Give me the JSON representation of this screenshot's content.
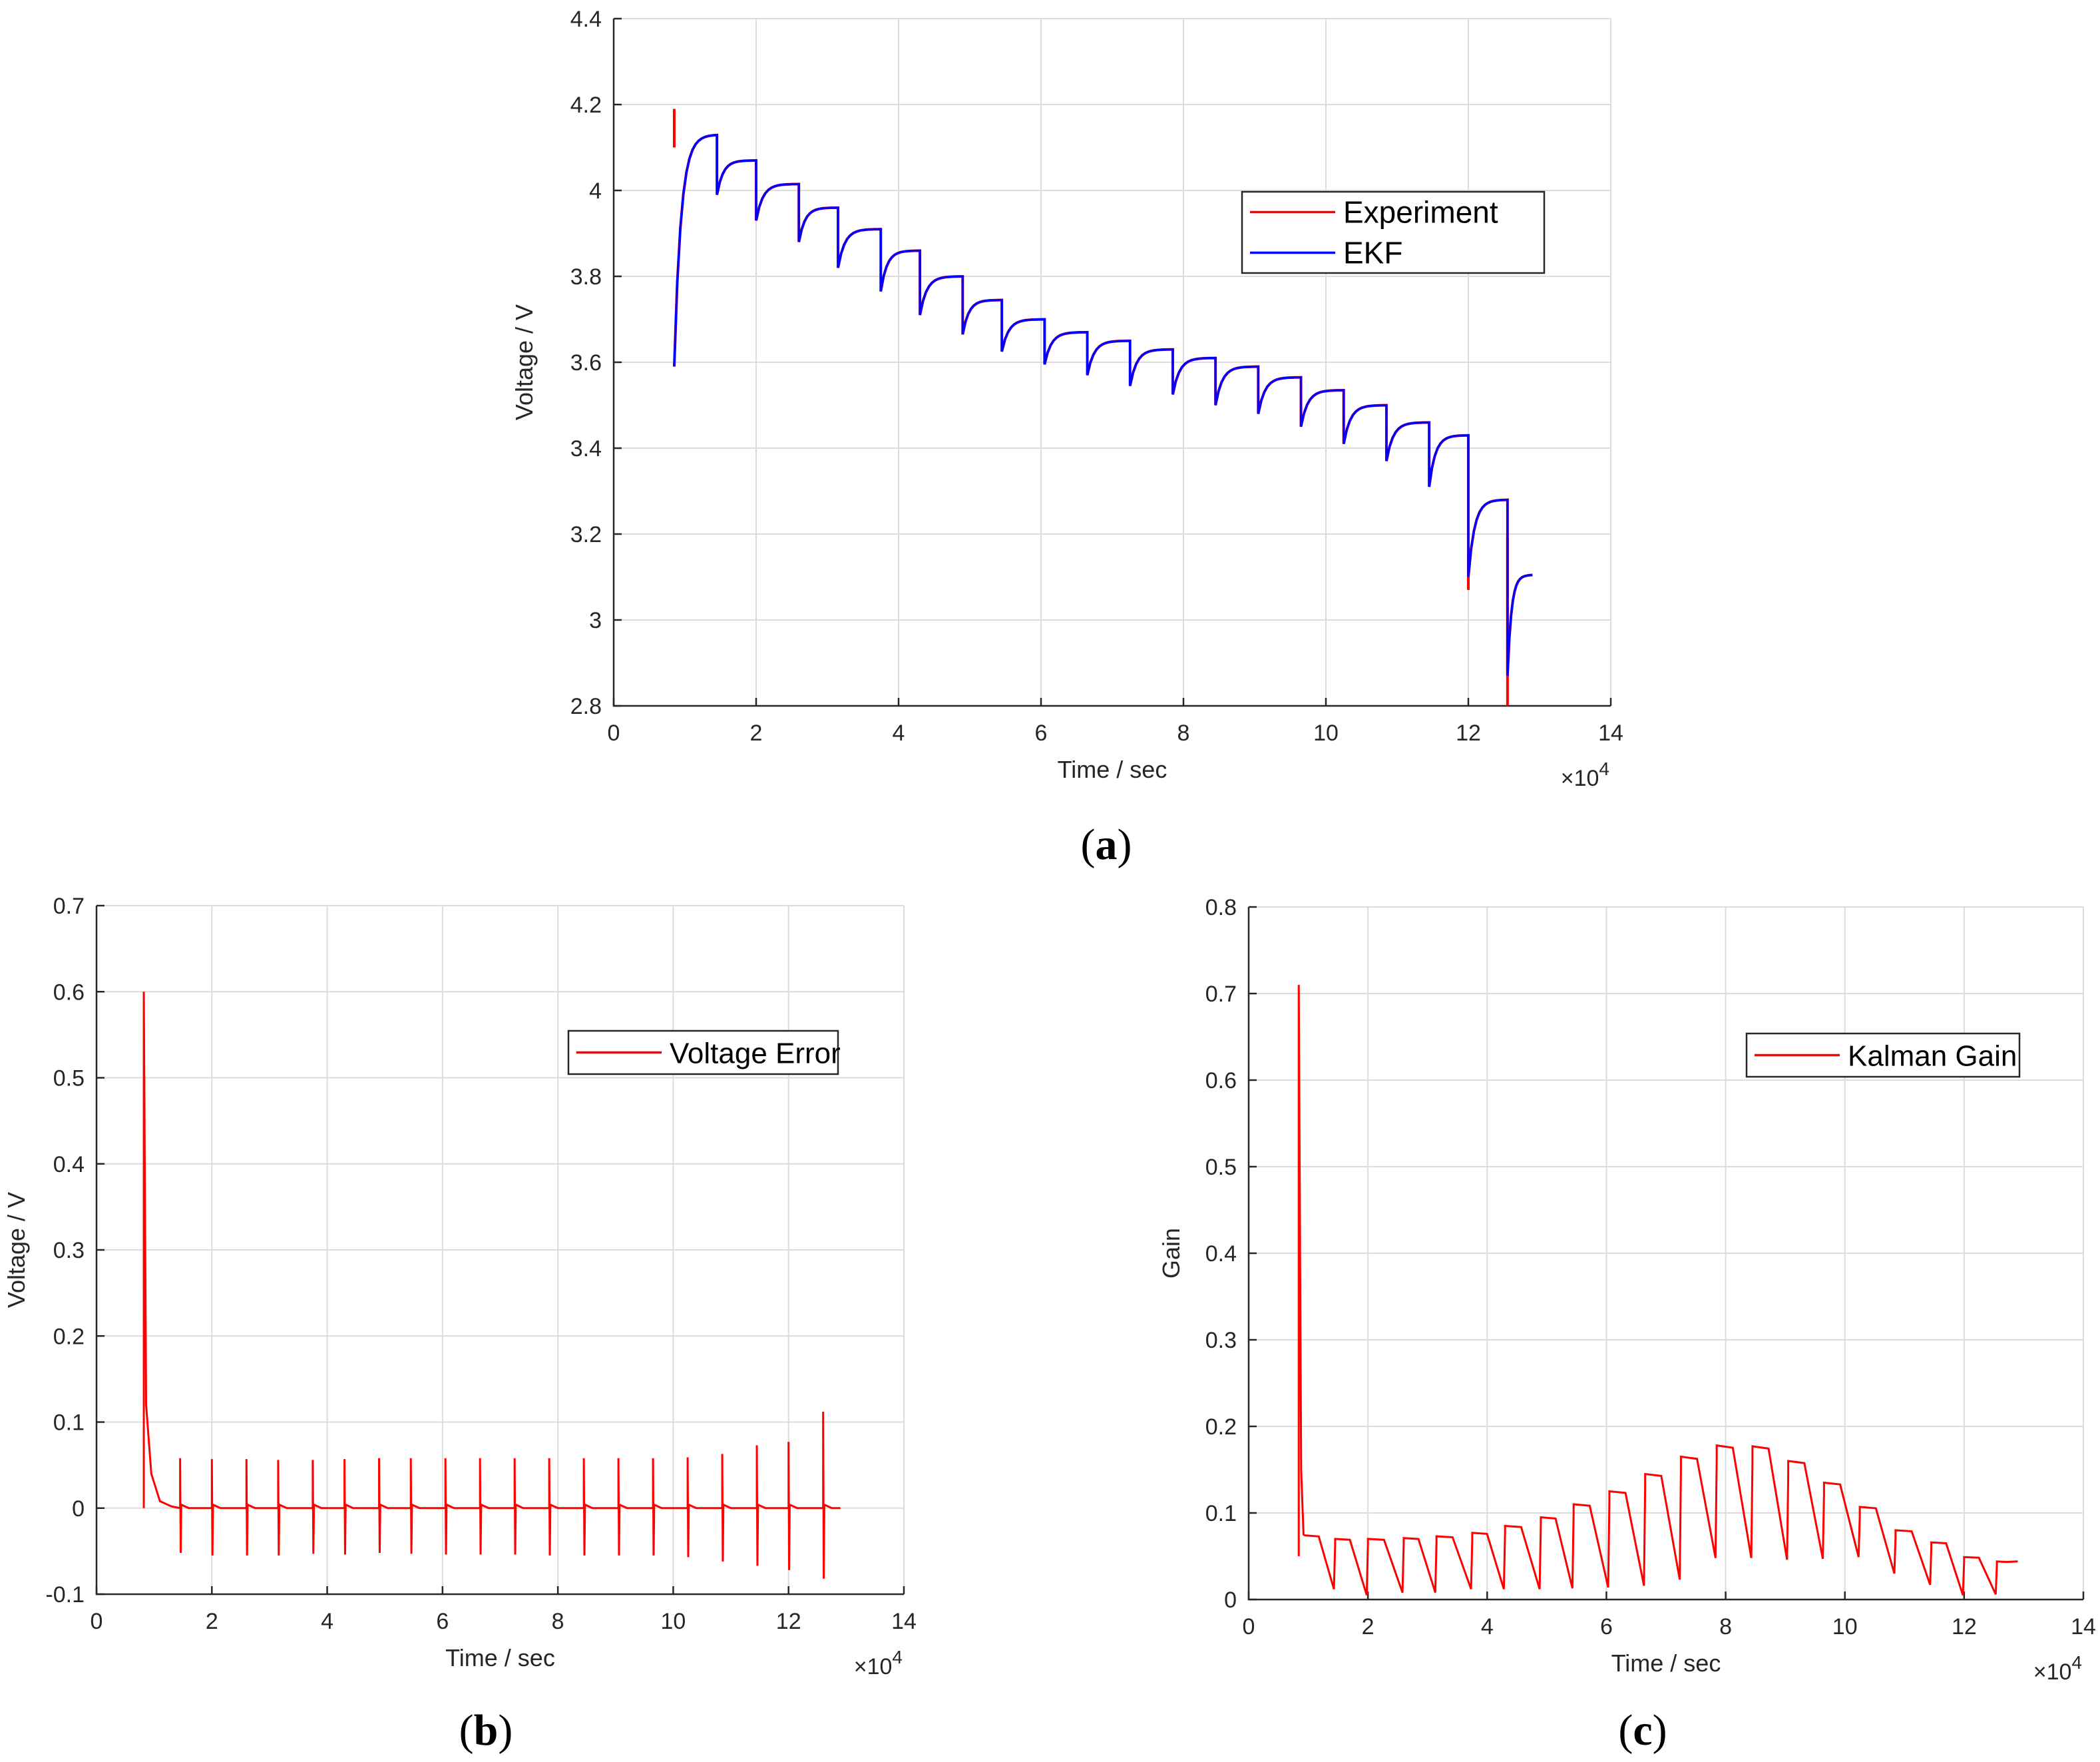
{
  "colors": {
    "experiment": "#ff0000",
    "ekf": "#0000ff",
    "error": "#ff0000",
    "gain": "#ff0000"
  },
  "chart_data": [
    {
      "id": "a",
      "type": "line",
      "caption_letter": "a",
      "xlabel": "Time / sec",
      "ylabel": "Voltage / V",
      "x_multiplier": "×10",
      "x_multiplier_exp": "4",
      "xlim": [
        0,
        14
      ],
      "ylim": [
        2.8,
        4.4
      ],
      "xticks": [
        "0",
        "2",
        "4",
        "6",
        "8",
        "10",
        "12",
        "14"
      ],
      "yticks": [
        "2.8",
        "3",
        "3.2",
        "3.4",
        "3.6",
        "3.8",
        "4",
        "4.2",
        "4.4"
      ],
      "legend": [
        "Experiment",
        "EKF"
      ],
      "pulse_times": [
        0.85,
        1.45,
        2.0,
        2.6,
        3.15,
        3.75,
        4.3,
        4.9,
        5.45,
        6.05,
        6.65,
        7.25,
        7.85,
        8.45,
        9.05,
        9.65,
        10.25,
        10.85,
        11.45,
        12.0,
        12.55
      ],
      "rest_voltages": [
        4.13,
        4.07,
        4.015,
        3.96,
        3.91,
        3.86,
        3.8,
        3.745,
        3.7,
        3.67,
        3.65,
        3.63,
        3.61,
        3.59,
        3.565,
        3.535,
        3.5,
        3.46,
        3.43,
        3.28,
        3.105
      ],
      "drop_voltages": [
        3.59,
        3.99,
        3.93,
        3.88,
        3.82,
        3.765,
        3.71,
        3.665,
        3.625,
        3.595,
        3.57,
        3.545,
        3.525,
        3.5,
        3.48,
        3.45,
        3.41,
        3.37,
        3.31,
        3.1,
        2.87
      ],
      "experiment_spikes": [
        {
          "x": 0.85,
          "y": 4.19
        },
        {
          "x": 12.0,
          "y": 3.07
        },
        {
          "x": 12.55,
          "y": 2.8
        }
      ],
      "end_time": 12.9
    },
    {
      "id": "b",
      "type": "line",
      "caption_letter": "b",
      "xlabel": "Time / sec",
      "ylabel": "Voltage / V",
      "x_multiplier": "×10",
      "x_multiplier_exp": "4",
      "xlim": [
        0,
        14
      ],
      "ylim": [
        -0.1,
        0.7
      ],
      "xticks": [
        "0",
        "2",
        "4",
        "6",
        "8",
        "10",
        "12",
        "14"
      ],
      "yticks": [
        "-0.1",
        "0",
        "0.1",
        "0.2",
        "0.3",
        "0.4",
        "0.5",
        "0.6",
        "0.7"
      ],
      "legend": [
        "Voltage Error"
      ],
      "initial_spike": 0.6,
      "spike_times": [
        1.45,
        2.0,
        2.6,
        3.15,
        3.75,
        4.3,
        4.9,
        5.45,
        6.05,
        6.65,
        7.25,
        7.85,
        8.45,
        9.05,
        9.65,
        10.25,
        10.85,
        11.45,
        12.0,
        12.6
      ],
      "spike_up": [
        0.058,
        0.057,
        0.057,
        0.056,
        0.056,
        0.057,
        0.058,
        0.058,
        0.058,
        0.058,
        0.058,
        0.058,
        0.058,
        0.058,
        0.058,
        0.059,
        0.063,
        0.073,
        0.077,
        0.112
      ],
      "spike_down": [
        -0.052,
        -0.055,
        -0.055,
        -0.055,
        -0.053,
        -0.054,
        -0.052,
        -0.053,
        -0.054,
        -0.054,
        -0.054,
        -0.055,
        -0.055,
        -0.055,
        -0.055,
        -0.057,
        -0.062,
        -0.067,
        -0.072,
        -0.082
      ],
      "end_time": 12.9
    },
    {
      "id": "c",
      "type": "line",
      "caption_letter": "c",
      "xlabel": "Time / sec",
      "ylabel": "Gain",
      "x_multiplier": "×10",
      "x_multiplier_exp": "4",
      "xlim": [
        0,
        14
      ],
      "ylim": [
        0,
        0.8
      ],
      "xticks": [
        "0",
        "2",
        "4",
        "6",
        "8",
        "10",
        "12",
        "14"
      ],
      "yticks": [
        "0",
        "0.1",
        "0.2",
        "0.3",
        "0.4",
        "0.5",
        "0.6",
        "0.7",
        "0.8"
      ],
      "legend": [
        "Kalman Gain"
      ],
      "initial_spike": 0.71,
      "segment_times": [
        0.85,
        1.45,
        2.0,
        2.6,
        3.15,
        3.75,
        4.3,
        4.9,
        5.45,
        6.05,
        6.65,
        7.25,
        7.85,
        8.45,
        9.05,
        9.65,
        10.25,
        10.85,
        11.45,
        12.0,
        12.55
      ],
      "segment_peaks": [
        0.074,
        0.07,
        0.07,
        0.071,
        0.073,
        0.077,
        0.085,
        0.095,
        0.11,
        0.125,
        0.145,
        0.165,
        0.178,
        0.177,
        0.16,
        0.135,
        0.107,
        0.08,
        0.066,
        0.049,
        0.044
      ],
      "segment_mins": [
        0.012,
        0.005,
        0.008,
        0.008,
        0.012,
        0.012,
        0.012,
        0.013,
        0.014,
        0.016,
        0.023,
        0.048,
        0.048,
        0.046,
        0.047,
        0.049,
        0.03,
        0.017,
        0.005,
        0.006
      ],
      "end_time": 12.9
    }
  ]
}
